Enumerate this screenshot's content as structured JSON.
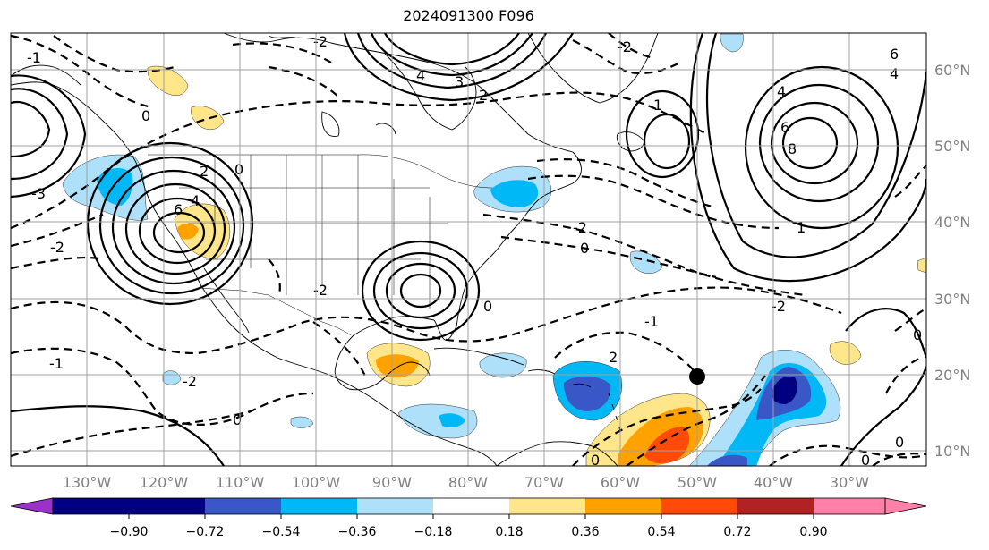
{
  "title": "2024091300 F096",
  "lon_labels": [
    "130°W",
    "120°W",
    "110°W",
    "100°W",
    "90°W",
    "80°W",
    "70°W",
    "60°W",
    "50°W",
    "40°W",
    "30°W"
  ],
  "lat_labels": [
    "60°N",
    "50°N",
    "40°N",
    "30°N",
    "20°N",
    "10°N"
  ],
  "colorbar": {
    "tick_labels": [
      "−0.90",
      "−0.72",
      "−0.54",
      "−0.36",
      "−0.18",
      "0.18",
      "0.36",
      "0.54",
      "0.72",
      "0.90"
    ],
    "colors": [
      "#9a31c8",
      "#000080",
      "#3a57c8",
      "#00b8f5",
      "#aee0fa",
      "#ffffff",
      "#ffe68a",
      "#ffa200",
      "#ff4a0a",
      "#b22222",
      "#ff80a8"
    ]
  },
  "fill_colors": {
    "light_blue": "#aee0fa",
    "blue": "#00b8f5",
    "mid_blue": "#3a57c8",
    "navy": "#000080",
    "yellow": "#ffe68a",
    "orange": "#ffa200",
    "red_orange": "#ff4a0a"
  },
  "contour_labels": [
    "6",
    "4",
    "3",
    "2",
    "1",
    "0",
    "-1",
    "-2",
    "-3",
    "8"
  ],
  "storm_marker": {
    "name": "tropical-storm-position",
    "color": "#000000"
  }
}
